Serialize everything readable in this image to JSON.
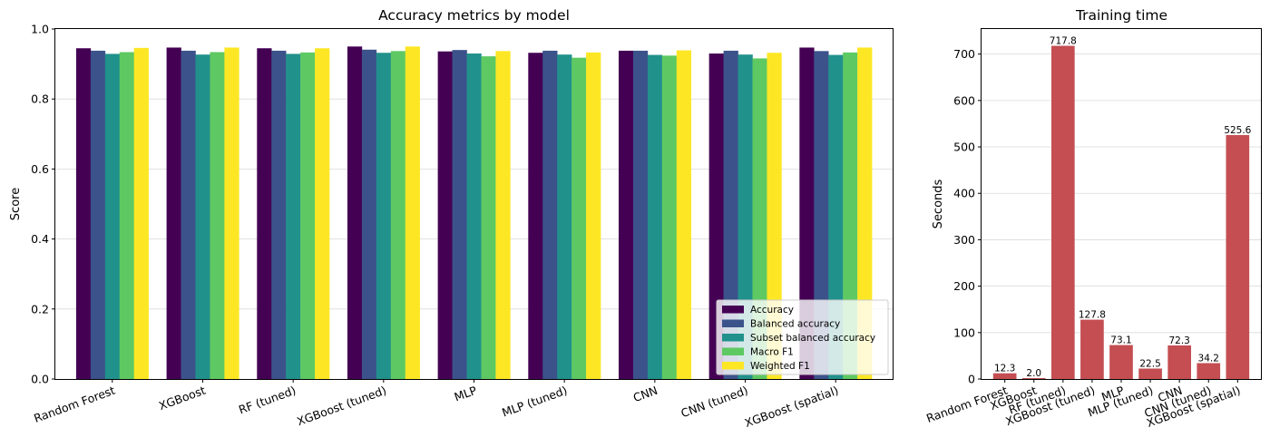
{
  "chart_data": [
    {
      "type": "bar",
      "title": "Accuracy metrics by model",
      "xlabel": "",
      "ylabel": "Score",
      "ylim": [
        0,
        1.0
      ],
      "yticks": [
        "0.0",
        "0.2",
        "0.4",
        "0.6",
        "0.8",
        "1.0"
      ],
      "grid": "y",
      "legend_position": "lower-right",
      "categories": [
        "Random Forest",
        "XGBoost",
        "RF (tuned)",
        "XGBoost (tuned)",
        "MLP",
        "MLP (tuned)",
        "CNN",
        "CNN (tuned)",
        "XGBoost (spatial)"
      ],
      "series": [
        {
          "name": "Accuracy",
          "color": "#440154",
          "values": [
            0.945,
            0.947,
            0.945,
            0.95,
            0.936,
            0.932,
            0.938,
            0.93,
            0.947
          ]
        },
        {
          "name": "Balanced accuracy",
          "color": "#3b528b",
          "values": [
            0.938,
            0.938,
            0.938,
            0.941,
            0.94,
            0.938,
            0.938,
            0.938,
            0.937
          ]
        },
        {
          "name": "Subset balanced accuracy",
          "color": "#21918c",
          "values": [
            0.929,
            0.927,
            0.929,
            0.932,
            0.93,
            0.927,
            0.926,
            0.927,
            0.926
          ]
        },
        {
          "name": "Macro F1",
          "color": "#5ec962",
          "values": [
            0.934,
            0.934,
            0.933,
            0.937,
            0.922,
            0.918,
            0.924,
            0.916,
            0.933
          ]
        },
        {
          "name": "Weighted F1",
          "color": "#fde725",
          "values": [
            0.946,
            0.947,
            0.945,
            0.95,
            0.937,
            0.933,
            0.939,
            0.932,
            0.947
          ]
        }
      ]
    },
    {
      "type": "bar",
      "title": "Training time",
      "xlabel": "",
      "ylabel": "Seconds",
      "ylim": [
        0,
        754
      ],
      "yticks": [
        "0",
        "100",
        "200",
        "300",
        "400",
        "500",
        "600",
        "700"
      ],
      "grid": "y",
      "color": "#c44e52",
      "categories": [
        "Random Forest",
        "XGBoost",
        "RF (tuned)",
        "XGBoost (tuned)",
        "MLP",
        "MLP (tuned)",
        "CNN",
        "CNN (tuned)",
        "XGBoost (spatial)"
      ],
      "values": [
        12.3,
        2.0,
        717.8,
        127.8,
        73.1,
        22.5,
        72.3,
        34.2,
        525.6
      ],
      "data_labels": [
        "12.3",
        "2.0",
        "717.8",
        "127.8",
        "73.1",
        "22.5",
        "72.3",
        "34.2",
        "525.6"
      ]
    }
  ]
}
